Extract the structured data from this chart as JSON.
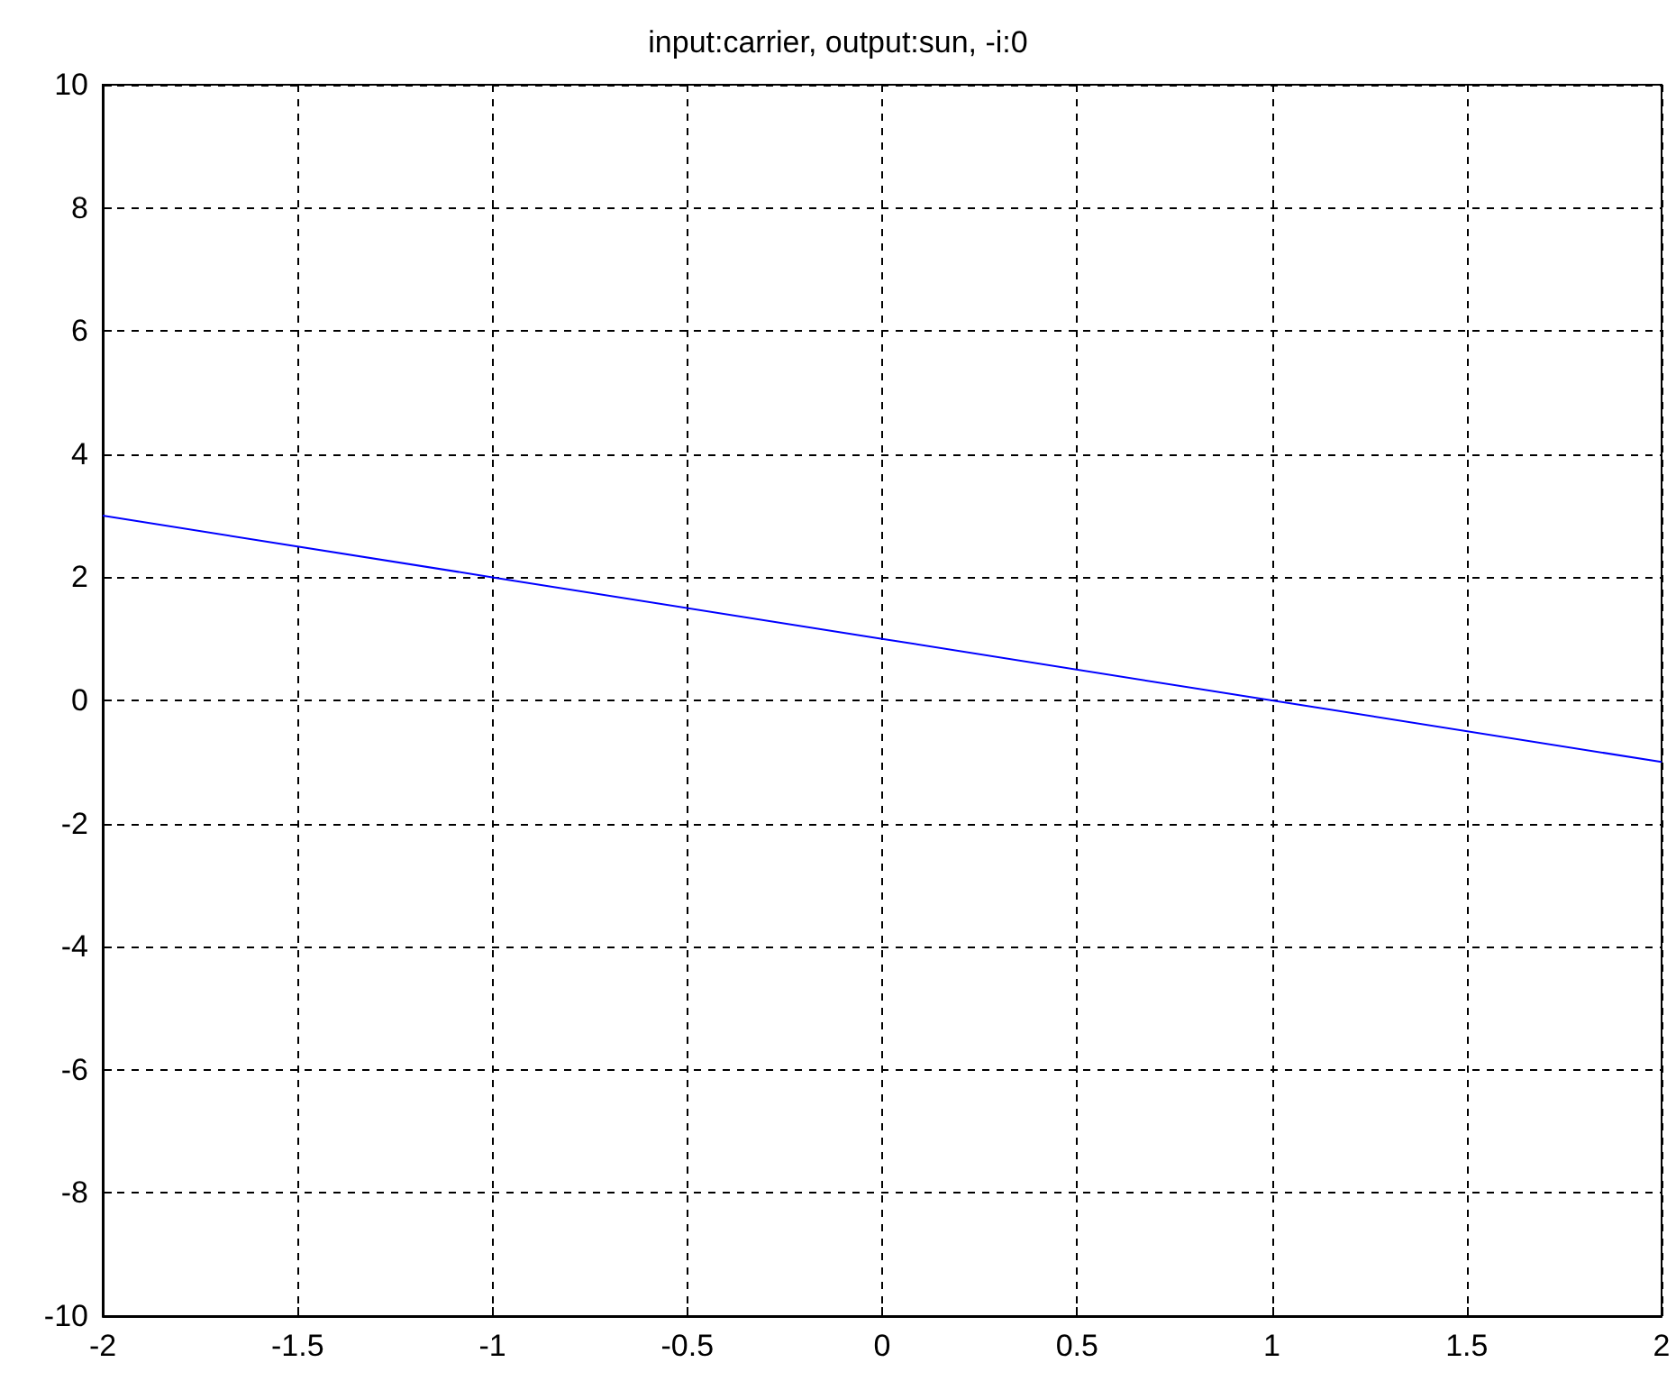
{
  "chart_data": {
    "type": "line",
    "title": "input:carrier, output:sun, -i:0",
    "x": [
      -2,
      -1,
      0,
      1,
      2
    ],
    "series": [
      {
        "color": "#0000ff",
        "values": [
          3,
          2,
          1,
          0,
          -1
        ]
      }
    ],
    "xlim": [
      -2,
      2
    ],
    "xticks": [
      -2,
      -1.5,
      -1,
      -0.5,
      0,
      0.5,
      1,
      1.5,
      2
    ],
    "ylim": [
      -10,
      10
    ],
    "yticks": [
      -10,
      -8,
      -6,
      -4,
      -2,
      0,
      2,
      4,
      6,
      8,
      10
    ],
    "grid": true,
    "marker": "none",
    "line_style": "solid"
  }
}
